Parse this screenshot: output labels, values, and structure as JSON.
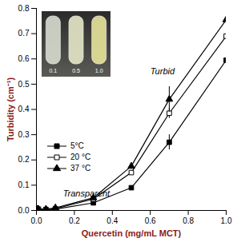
{
  "chart_data": {
    "type": "line",
    "x_label": "Quercetin (mg/mL MCT)",
    "y_label": "Turbidity (cm⁻¹)",
    "x": [
      0,
      0.01,
      0.05,
      0.1,
      0.3,
      0.5,
      0.7,
      1.0
    ],
    "series": [
      {
        "name": "5°C",
        "color": "#000000",
        "marker": "square",
        "values": [
          0.0,
          0.005,
          0.003,
          0.005,
          0.03,
          0.09,
          0.27,
          0.595
        ],
        "errors": [
          0.005,
          0.003,
          0.003,
          0.003,
          0.005,
          0.006,
          0.03,
          0.04
        ]
      },
      {
        "name": "20 °C",
        "color": "#000000",
        "marker": "square-open",
        "values": [
          0.01,
          0.005,
          0.004,
          0.007,
          0.045,
          0.15,
          0.385,
          0.69
        ],
        "errors": [
          0.008,
          0.003,
          0.003,
          0.003,
          0.005,
          0.008,
          0.02,
          0.03
        ]
      },
      {
        "name": "37 °C",
        "color": "#000000",
        "marker": "triangle",
        "values": [
          0.005,
          0.005,
          0.005,
          0.01,
          0.05,
          0.175,
          0.44,
          0.755
        ],
        "errors": [
          0.004,
          0.003,
          0.003,
          0.003,
          0.006,
          0.012,
          0.05,
          0.04
        ]
      }
    ],
    "xlim": [
      0,
      1
    ],
    "xticks": [
      0,
      0.2,
      0.4,
      0.6,
      0.8,
      1
    ],
    "ylim": [
      0,
      0.8
    ],
    "yticks": [
      0,
      0.1,
      0.2,
      0.3,
      0.4,
      0.5,
      0.6,
      0.7,
      0.8
    ],
    "legend": "left",
    "annotations": [
      {
        "text": "Turbid",
        "x": 0.6,
        "y": 0.55
      },
      {
        "text": "Transparent",
        "x": 0.14,
        "y": 0.065
      }
    ],
    "inset_labels": [
      "0.1",
      "0.5",
      "1.0"
    ]
  }
}
